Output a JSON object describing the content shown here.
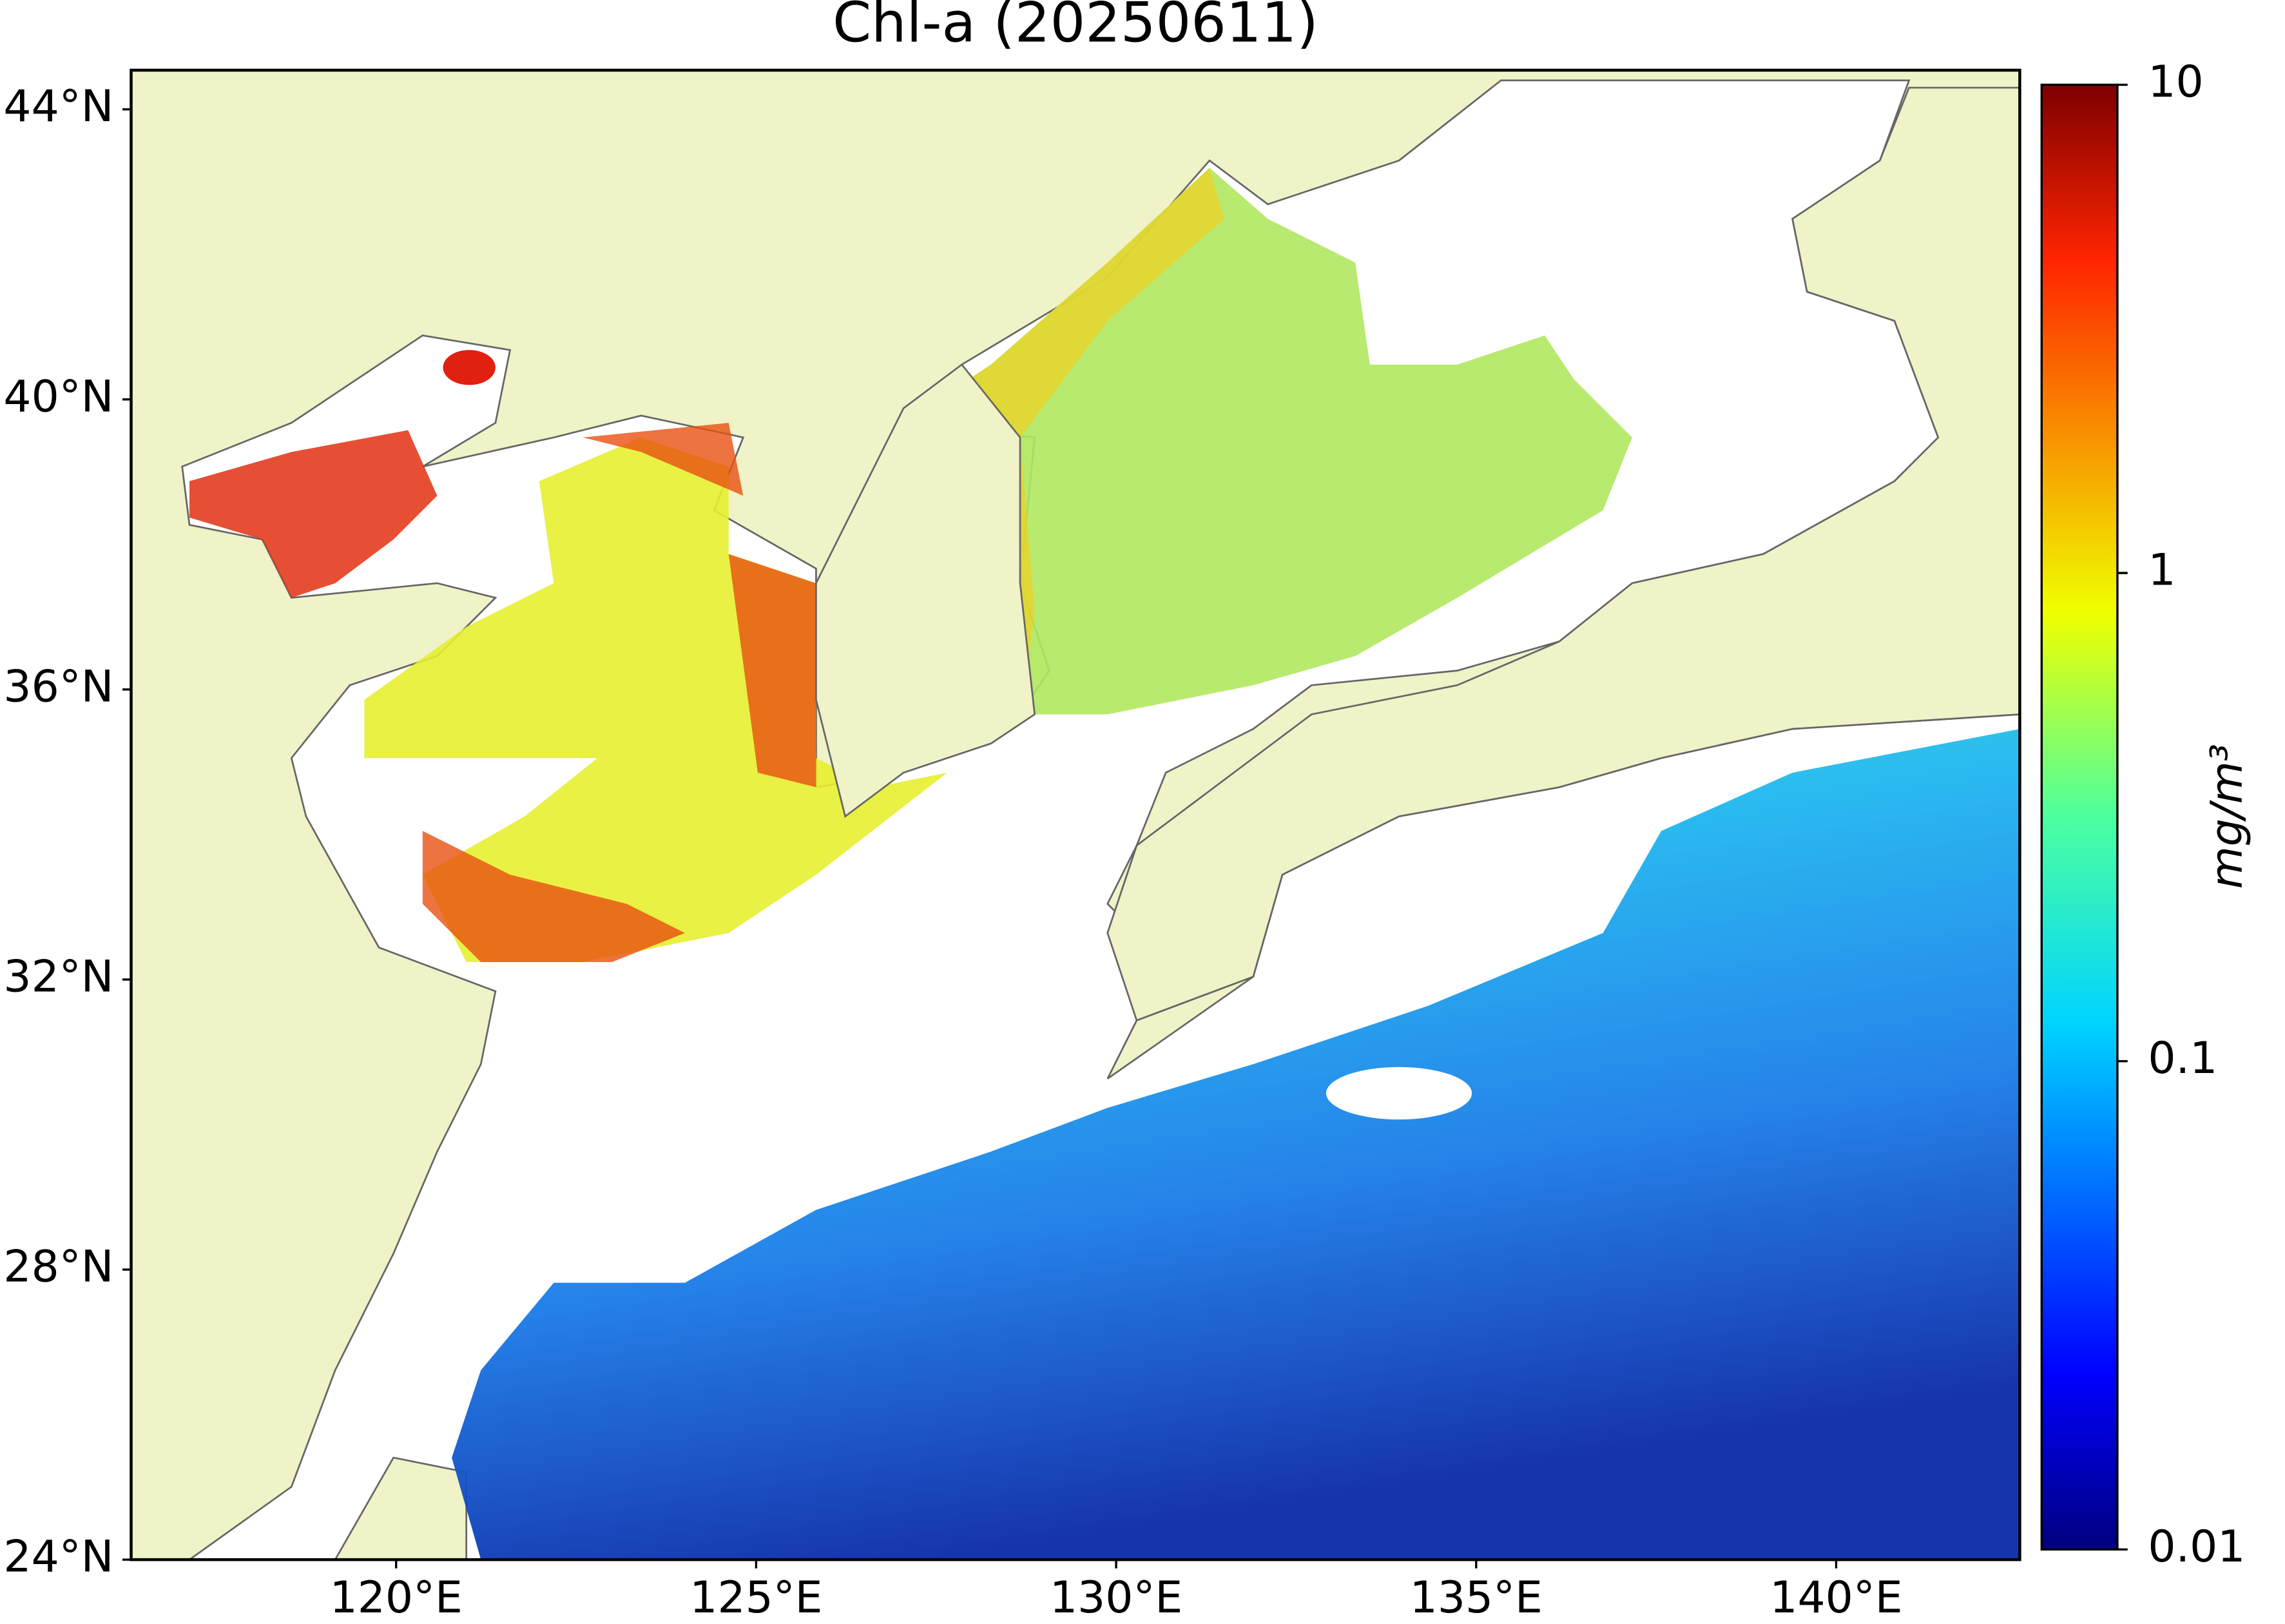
{
  "title": "Chl-a (20250611)",
  "extent": {
    "lon": [
      116.32,
      142.55
    ],
    "lat": [
      24,
      44.54
    ]
  },
  "lat_ticks": [
    {
      "value": 44,
      "label": "44°N"
    },
    {
      "value": 40,
      "label": "40°N"
    },
    {
      "value": 36,
      "label": "36°N"
    },
    {
      "value": 32,
      "label": "32°N"
    },
    {
      "value": 28,
      "label": "28°N"
    },
    {
      "value": 24,
      "label": "24°N"
    }
  ],
  "lon_ticks": [
    {
      "value": 120,
      "label": "120°E"
    },
    {
      "value": 125,
      "label": "125°E"
    },
    {
      "value": 130,
      "label": "130°E"
    },
    {
      "value": 135,
      "label": "135°E"
    },
    {
      "value": 140,
      "label": "140°E"
    }
  ],
  "colorbar": {
    "label": "mg/m³",
    "scale": "log",
    "range": [
      0.01,
      10
    ],
    "ticks": [
      10,
      1,
      0.1,
      0.01
    ]
  }
}
